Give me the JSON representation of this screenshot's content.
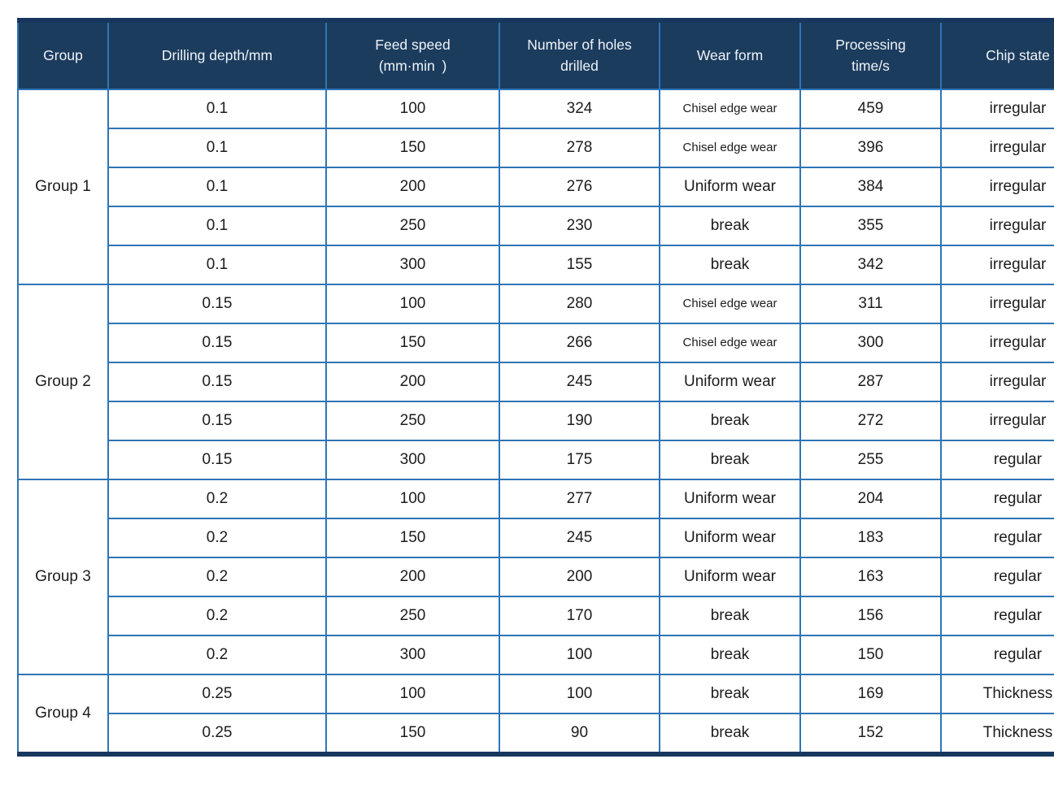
{
  "table": {
    "columns": [
      {
        "id": "group",
        "label": "Group"
      },
      {
        "id": "depth",
        "label": "Drilling depth/mm"
      },
      {
        "id": "feed",
        "label": "Feed speed\n(mm·min )"
      },
      {
        "id": "holes",
        "label": "Number of holes\ndrilled"
      },
      {
        "id": "wear",
        "label": "Wear form"
      },
      {
        "id": "time",
        "label": "Processing\ntime/s"
      },
      {
        "id": "chip",
        "label": "Chip state"
      }
    ],
    "groups": [
      {
        "name": "Group 1",
        "rows": [
          {
            "depth": "0.1",
            "feed": "100",
            "holes": "324",
            "wear": "Chisel edge wear",
            "time": "459",
            "chip": "irregular"
          },
          {
            "depth": "0.1",
            "feed": "150",
            "holes": "278",
            "wear": "Chisel edge wear",
            "time": "396",
            "chip": "irregular"
          },
          {
            "depth": "0.1",
            "feed": "200",
            "holes": "276",
            "wear": "Uniform wear",
            "time": "384",
            "chip": "irregular"
          },
          {
            "depth": "0.1",
            "feed": "250",
            "holes": "230",
            "wear": "break",
            "time": "355",
            "chip": "irregular"
          },
          {
            "depth": "0.1",
            "feed": "300",
            "holes": "155",
            "wear": "break",
            "time": "342",
            "chip": "irregular"
          }
        ]
      },
      {
        "name": "Group 2",
        "rows": [
          {
            "depth": "0.15",
            "feed": "100",
            "holes": "280",
            "wear": "Chisel edge wear",
            "time": "311",
            "chip": "irregular"
          },
          {
            "depth": "0.15",
            "feed": "150",
            "holes": "266",
            "wear": "Chisel edge wear",
            "time": "300",
            "chip": "irregular"
          },
          {
            "depth": "0.15",
            "feed": "200",
            "holes": "245",
            "wear": "Uniform wear",
            "time": "287",
            "chip": "irregular"
          },
          {
            "depth": "0.15",
            "feed": "250",
            "holes": "190",
            "wear": "break",
            "time": "272",
            "chip": "irregular"
          },
          {
            "depth": "0.15",
            "feed": "300",
            "holes": "175",
            "wear": "break",
            "time": "255",
            "chip": "regular"
          }
        ]
      },
      {
        "name": "Group 3",
        "rows": [
          {
            "depth": "0.2",
            "feed": "100",
            "holes": "277",
            "wear": "Uniform wear",
            "time": "204",
            "chip": "regular"
          },
          {
            "depth": "0.2",
            "feed": "150",
            "holes": "245",
            "wear": "Uniform wear",
            "time": "183",
            "chip": "regular"
          },
          {
            "depth": "0.2",
            "feed": "200",
            "holes": "200",
            "wear": "Uniform wear",
            "time": "163",
            "chip": "regular"
          },
          {
            "depth": "0.2",
            "feed": "250",
            "holes": "170",
            "wear": "break",
            "time": "156",
            "chip": "regular"
          },
          {
            "depth": "0.2",
            "feed": "300",
            "holes": "100",
            "wear": "break",
            "time": "150",
            "chip": "regular"
          }
        ]
      },
      {
        "name": "Group 4",
        "rows": [
          {
            "depth": "0.25",
            "feed": "100",
            "holes": "100",
            "wear": "break",
            "time": "169",
            "chip": "Thickness"
          },
          {
            "depth": "0.25",
            "feed": "150",
            "holes": "90",
            "wear": "break",
            "time": "152",
            "chip": "Thickness"
          }
        ]
      }
    ],
    "colors": {
      "header_bg": "#1c3c5e",
      "grid_line": "#2e75b6",
      "outer_bar": "#17375e",
      "header_text": "#eef3f8",
      "body_text": "#1c1c1c"
    }
  }
}
